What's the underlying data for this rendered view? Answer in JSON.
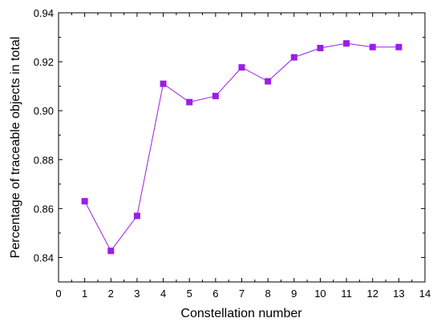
{
  "chart_data": {
    "type": "line",
    "title": "",
    "xlabel": "Constellation number",
    "ylabel": "Percentage of traceable objects in total",
    "xlim": [
      0,
      14
    ],
    "ylim": [
      0.83,
      0.94
    ],
    "x_ticks": [
      "0",
      "1",
      "2",
      "3",
      "4",
      "5",
      "6",
      "7",
      "8",
      "9",
      "10",
      "11",
      "12",
      "13",
      "14"
    ],
    "y_ticks": [
      "0.84",
      "0.86",
      "0.88",
      "0.90",
      "0.92",
      "0.94"
    ],
    "grid": false,
    "legend": "none",
    "series": [
      {
        "color": "#9B1EE8",
        "marker": "square",
        "x": [
          1,
          2,
          3,
          4,
          5,
          6,
          7,
          8,
          9,
          10,
          11,
          12,
          13
        ],
        "y": [
          0.863,
          0.8427,
          0.857,
          0.911,
          0.9035,
          0.906,
          0.9177,
          0.912,
          0.9218,
          0.9256,
          0.9275,
          0.926,
          0.926
        ]
      }
    ]
  }
}
